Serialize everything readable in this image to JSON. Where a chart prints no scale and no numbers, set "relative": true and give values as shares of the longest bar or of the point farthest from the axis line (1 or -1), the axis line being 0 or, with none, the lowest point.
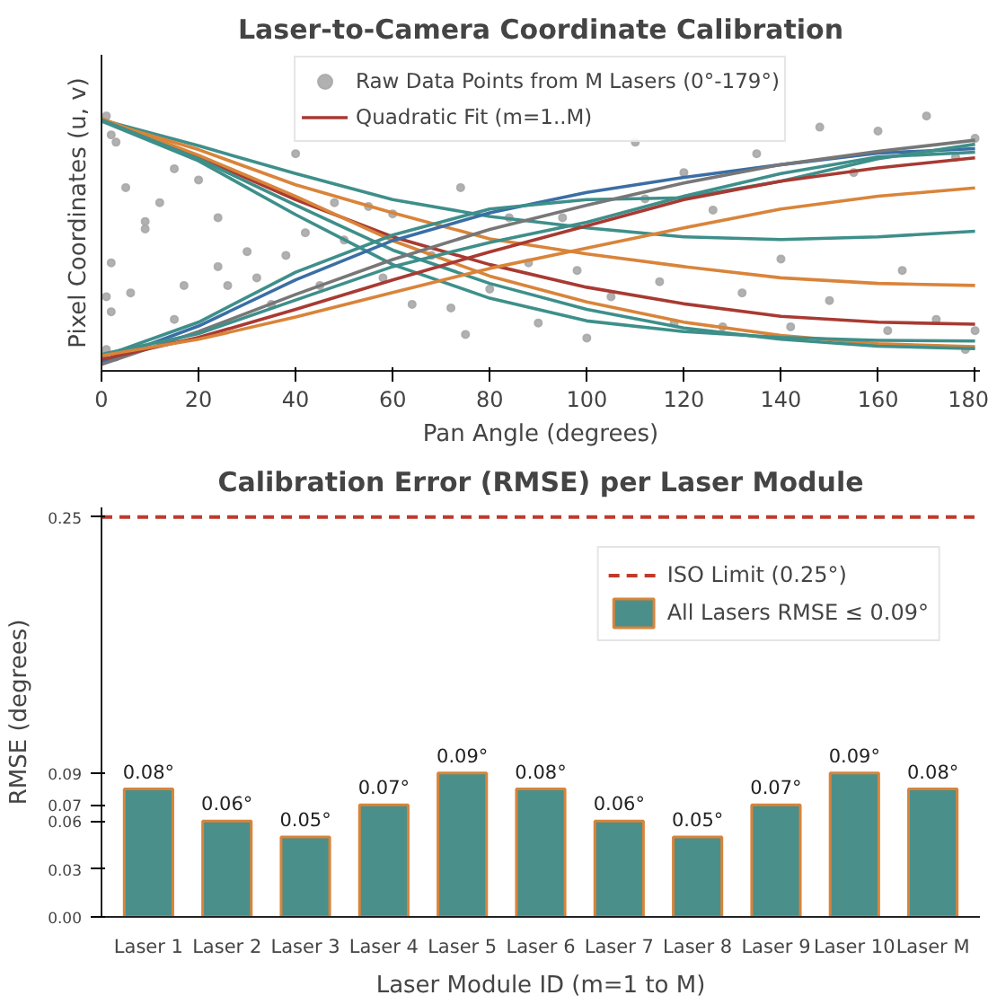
{
  "chart_data": [
    {
      "type": "line",
      "title": "Laser-to-Camera Coordinate Calibration",
      "xlabel": "Pan Angle (degrees)",
      "ylabel": "Pixel Coordinates (u, v)",
      "relative": true,
      "x": [
        0,
        20,
        40,
        60,
        80,
        100,
        120,
        140,
        160,
        180
      ],
      "xlim": [
        0,
        181
      ],
      "xticks": [
        0,
        20,
        40,
        60,
        80,
        100,
        120,
        140,
        160,
        180
      ],
      "grid": false,
      "legend": "top",
      "series": [
        {
          "type": "scatter",
          "name": "Raw Data Points from M Lasers (0°-179°)",
          "color": "#a8a8a8",
          "x": [
            1,
            2,
            3,
            5,
            9,
            9,
            12,
            15,
            2,
            1,
            2,
            6,
            15,
            17,
            20,
            24,
            24,
            26,
            30,
            32,
            35,
            38,
            40,
            42,
            45,
            48,
            50,
            55,
            58,
            60,
            64,
            68,
            72,
            74,
            75,
            80,
            84,
            88,
            90,
            95,
            98,
            100,
            105,
            110,
            112,
            115,
            118,
            120,
            126,
            128,
            132,
            135,
            140,
            142,
            148,
            150,
            155,
            160,
            162,
            165,
            170,
            172,
            176,
            178,
            180,
            180,
            1,
            3
          ],
          "values": [
            1.0,
            0.926,
            0.897,
            0.719,
            0.586,
            0.557,
            0.66,
            0.793,
            0.424,
            0.291,
            0.232,
            0.306,
            0.202,
            0.335,
            0.749,
            0.601,
            0.409,
            0.335,
            0.468,
            0.365,
            0.261,
            0.453,
            0.852,
            0.542,
            0.335,
            0.66,
            0.513,
            0.645,
            0.365,
            0.616,
            0.261,
            0.453,
            0.247,
            0.719,
            0.143,
            0.321,
            0.601,
            0.424,
            0.188,
            0.601,
            0.394,
            0.129,
            0.291,
            0.897,
            0.675,
            0.35,
            0.188,
            0.778,
            0.631,
            0.173,
            0.306,
            0.852,
            0.439,
            0.173,
            0.956,
            0.276,
            0.778,
            0.941,
            0.158,
            0.394,
            1.0,
            0.202,
            0.838,
            0.084,
            0.912,
            0.158,
            0.084,
            0.055
          ]
        },
        {
          "color": "#3e8f8a",
          "values": [
            0.985,
            0.883,
            0.774,
            0.672,
            0.606,
            0.561,
            0.526,
            0.515,
            0.526,
            0.548
          ]
        },
        {
          "color": "#d9843a",
          "values": [
            0.98,
            0.868,
            0.73,
            0.62,
            0.518,
            0.459,
            0.409,
            0.365,
            0.343,
            0.335
          ]
        },
        {
          "name": "Quadratic Fit (m=1..M)",
          "color": "#a83a32",
          "values": [
            0.985,
            0.839,
            0.672,
            0.526,
            0.417,
            0.328,
            0.263,
            0.214,
            0.191,
            0.183
          ]
        },
        {
          "color": "#d9843a",
          "values": [
            0.99,
            0.846,
            0.685,
            0.511,
            0.372,
            0.27,
            0.191,
            0.139,
            0.106,
            0.095
          ]
        },
        {
          "color": "#3e8f8a",
          "values": [
            0.985,
            0.832,
            0.65,
            0.474,
            0.343,
            0.241,
            0.168,
            0.124,
            0.097,
            0.087
          ]
        },
        {
          "color": "#3e8f8a",
          "values": [
            0.98,
            0.824,
            0.613,
            0.417,
            0.285,
            0.196,
            0.154,
            0.131,
            0.12,
            0.117
          ]
        },
        {
          "color": "#3a6ea5",
          "values": [
            0.035,
            0.176,
            0.357,
            0.511,
            0.62,
            0.7,
            0.759,
            0.809,
            0.854,
            0.872
          ]
        },
        {
          "color": "#3e8f8a",
          "values": [
            0.055,
            0.191,
            0.387,
            0.533,
            0.635,
            0.672,
            0.679,
            0.744,
            0.832,
            0.889
          ]
        },
        {
          "color": "#777777",
          "values": [
            0.025,
            0.154,
            0.3,
            0.437,
            0.555,
            0.65,
            0.737,
            0.809,
            0.861,
            0.905
          ]
        },
        {
          "color": "#3e8f8a",
          "values": [
            0.065,
            0.146,
            0.278,
            0.409,
            0.504,
            0.583,
            0.685,
            0.774,
            0.839,
            0.858
          ]
        },
        {
          "color": "#a83a32",
          "values": [
            0.045,
            0.131,
            0.241,
            0.357,
            0.467,
            0.569,
            0.672,
            0.744,
            0.796,
            0.836
          ]
        },
        {
          "color": "#d9843a",
          "values": [
            0.06,
            0.124,
            0.211,
            0.307,
            0.402,
            0.482,
            0.561,
            0.635,
            0.685,
            0.718
          ]
        }
      ]
    },
    {
      "type": "bar",
      "title": "Calibration Error (RMSE) per Laser Module",
      "xlabel": "Laser Module ID (m=1 to M)",
      "ylabel": "RMSE (degrees)",
      "categories": [
        "Laser 1",
        "Laser 2",
        "Laser 3",
        "Laser 4",
        "Laser 5",
        "Laser 6",
        "Laser 7",
        "Laser 8",
        "Laser 9",
        "Laser 10",
        "Laser M"
      ],
      "ylim": [
        0,
        0.256
      ],
      "yticks": [
        {
          "value": 0,
          "label": "0.00"
        },
        0.03,
        0.06,
        0.07,
        0.09,
        0.25
      ],
      "grid": false,
      "legend": "top right",
      "series": [
        {
          "name": "All Lasers RMSE ≤ 0.09°",
          "color": "#4a8f8a",
          "values": [
            0.08,
            0.06,
            0.05,
            0.07,
            0.09,
            0.08,
            0.06,
            0.05,
            0.07,
            0.09,
            0.08
          ],
          "value_labels": [
            "0.08°",
            "0.06°",
            "0.05°",
            "0.07°",
            "0.09°",
            "0.08°",
            "0.06°",
            "0.05°",
            "0.07°",
            "0.09°",
            "0.08°"
          ]
        }
      ],
      "ref_lines": [
        {
          "axis": "y",
          "value": 0.25,
          "label": "ISO Limit (0.25°)",
          "color": "#c0392b",
          "line_style": "dashed"
        }
      ]
    }
  ]
}
